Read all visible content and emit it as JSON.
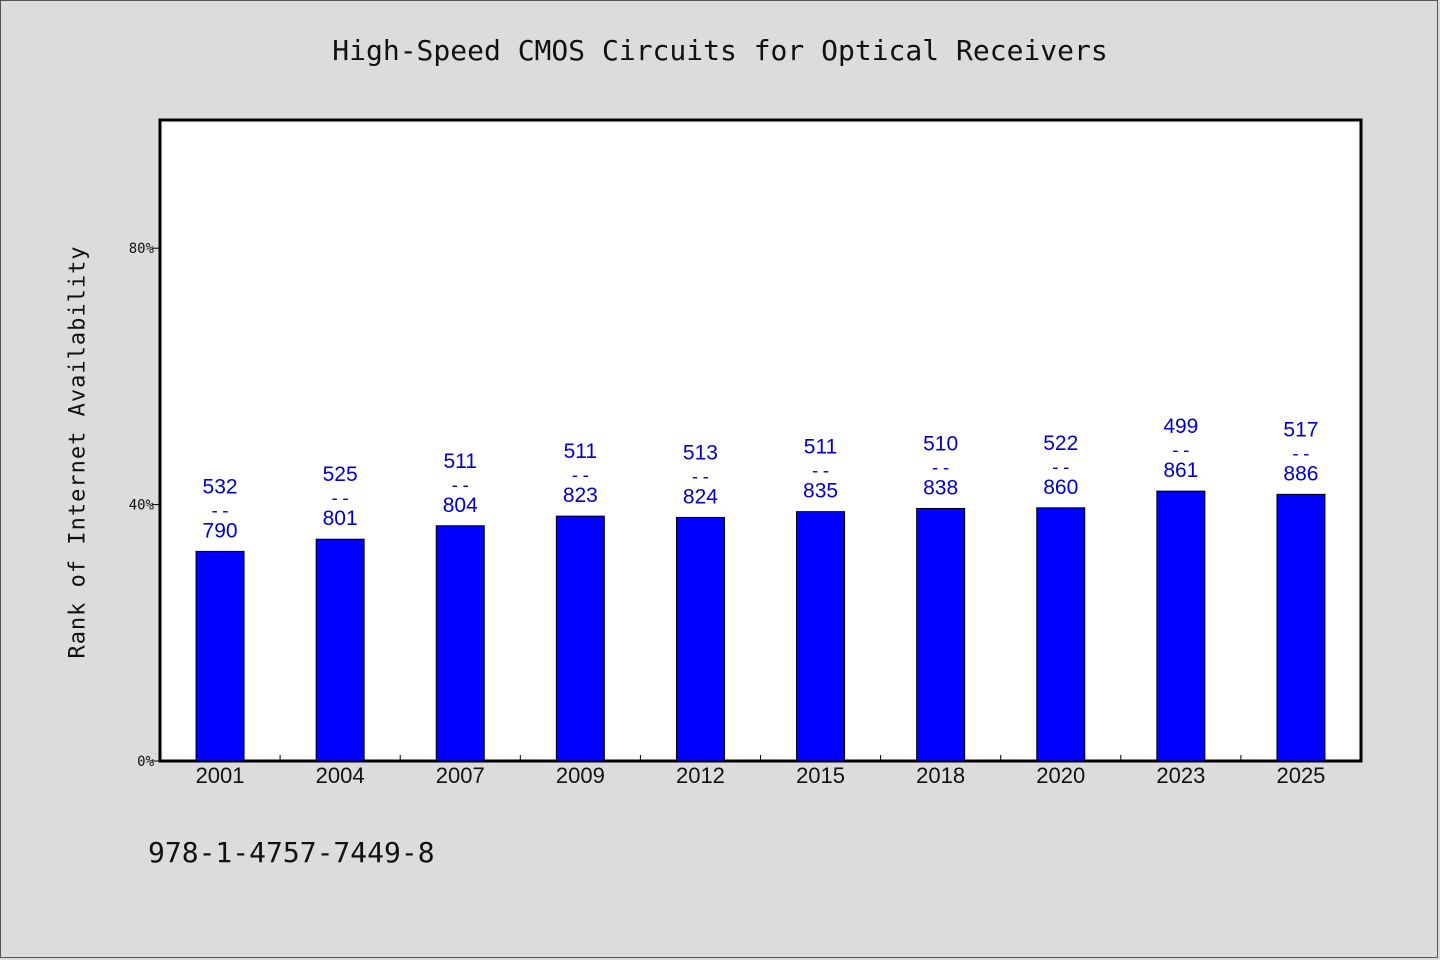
{
  "chart_data": {
    "type": "bar",
    "title": "High-Speed CMOS Circuits for Optical Receivers",
    "xlabel": "",
    "ylabel": "Rank of Internet Availability",
    "y_ticks": [
      "0%",
      "40%",
      "80%"
    ],
    "ylim": [
      0,
      100
    ],
    "grid": false,
    "bar_color": "#0000ff",
    "label_color": "#0000cc",
    "categories": [
      "2001",
      "2004",
      "2007",
      "2009",
      "2012",
      "2015",
      "2018",
      "2020",
      "2023",
      "2025"
    ],
    "values": [
      32.7,
      34.6,
      36.7,
      38.2,
      38.0,
      38.9,
      39.4,
      39.5,
      42.1,
      41.6
    ],
    "data_labels": [
      {
        "top": "532",
        "sep": "--",
        "bottom": "790"
      },
      {
        "top": "525",
        "sep": "--",
        "bottom": "801"
      },
      {
        "top": "511",
        "sep": "--",
        "bottom": "804"
      },
      {
        "top": "511",
        "sep": "--",
        "bottom": "823"
      },
      {
        "top": "513",
        "sep": "--",
        "bottom": "824"
      },
      {
        "top": "511",
        "sep": "--",
        "bottom": "835"
      },
      {
        "top": "510",
        "sep": "--",
        "bottom": "838"
      },
      {
        "top": "522",
        "sep": "--",
        "bottom": "860"
      },
      {
        "top": "499",
        "sep": "--",
        "bottom": "861"
      },
      {
        "top": "517",
        "sep": "--",
        "bottom": "886"
      }
    ]
  },
  "footer": {
    "isbn": "978-1-4757-7449-8"
  }
}
